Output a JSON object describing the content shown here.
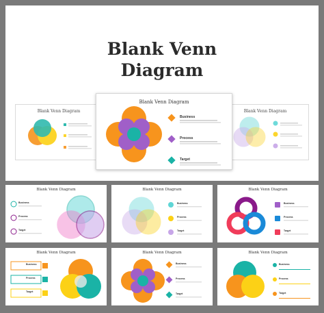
{
  "hero": {
    "title_line1": "Blank Venn",
    "title_line2": "Diagram"
  },
  "slide_title": "Blank Venn Diagram",
  "items": [
    "Business",
    "Process",
    "Target"
  ],
  "colors": {
    "orange": "#f7941d",
    "yellow": "#fcd116",
    "teal": "#1ab3a6",
    "purple": "#a05fc8",
    "cyan": "#5fd6d6",
    "lavender": "#c7a6e8",
    "pink": "#f07ac8",
    "dark_purple": "#8a1a8a",
    "red": "#f03c5a",
    "blue": "#1a8ad8"
  }
}
